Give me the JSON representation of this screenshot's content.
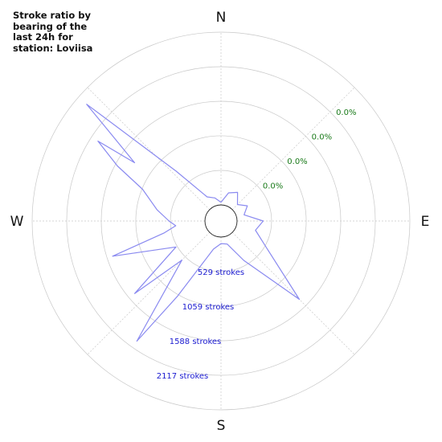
{
  "chart_data": {
    "type": "polar-line",
    "title": "Stroke ratio by\nbearing of the\nlast 24h for\nstation: Loviisa",
    "directions": [
      "N",
      "E",
      "S",
      "W"
    ],
    "ring_labels_percent": [
      "0.0%",
      "0.0%",
      "0.0%",
      "0.0%"
    ],
    "ring_labels_strokes": [
      "529 strokes",
      "1059 strokes",
      "1588 strokes",
      "2117 strokes"
    ],
    "ring_values": [
      529,
      1059,
      1588,
      2117
    ],
    "rmax": 2646,
    "grid": true,
    "series": [
      {
        "color": "#8a8af0",
        "points": [
          {
            "bearing": 0,
            "value": 40
          },
          {
            "bearing": 15,
            "value": 200
          },
          {
            "bearing": 30,
            "value": 260
          },
          {
            "bearing": 45,
            "value": 110
          },
          {
            "bearing": 60,
            "value": 220
          },
          {
            "bearing": 75,
            "value": 120
          },
          {
            "bearing": 90,
            "value": 400
          },
          {
            "bearing": 105,
            "value": 300
          },
          {
            "bearing": 120,
            "value": 550
          },
          {
            "bearing": 135,
            "value": 1450
          },
          {
            "bearing": 150,
            "value": 450
          },
          {
            "bearing": 165,
            "value": 120
          },
          {
            "bearing": 180,
            "value": 100
          },
          {
            "bearing": 195,
            "value": 200
          },
          {
            "bearing": 210,
            "value": 1080
          },
          {
            "bearing": 215,
            "value": 2000
          },
          {
            "bearing": 225,
            "value": 600
          },
          {
            "bearing": 230,
            "value": 1480
          },
          {
            "bearing": 240,
            "value": 550
          },
          {
            "bearing": 252,
            "value": 1500
          },
          {
            "bearing": 258,
            "value": 650
          },
          {
            "bearing": 264,
            "value": 450
          },
          {
            "bearing": 270,
            "value": 550
          },
          {
            "bearing": 280,
            "value": 750
          },
          {
            "bearing": 292,
            "value": 1050
          },
          {
            "bearing": 298,
            "value": 1550
          },
          {
            "bearing": 303,
            "value": 2000
          },
          {
            "bearing": 304,
            "value": 1350
          },
          {
            "bearing": 311,
            "value": 2480
          },
          {
            "bearing": 318,
            "value": 780
          },
          {
            "bearing": 330,
            "value": 180
          },
          {
            "bearing": 345,
            "value": 120
          },
          {
            "bearing": 360,
            "value": 40
          }
        ]
      }
    ]
  }
}
